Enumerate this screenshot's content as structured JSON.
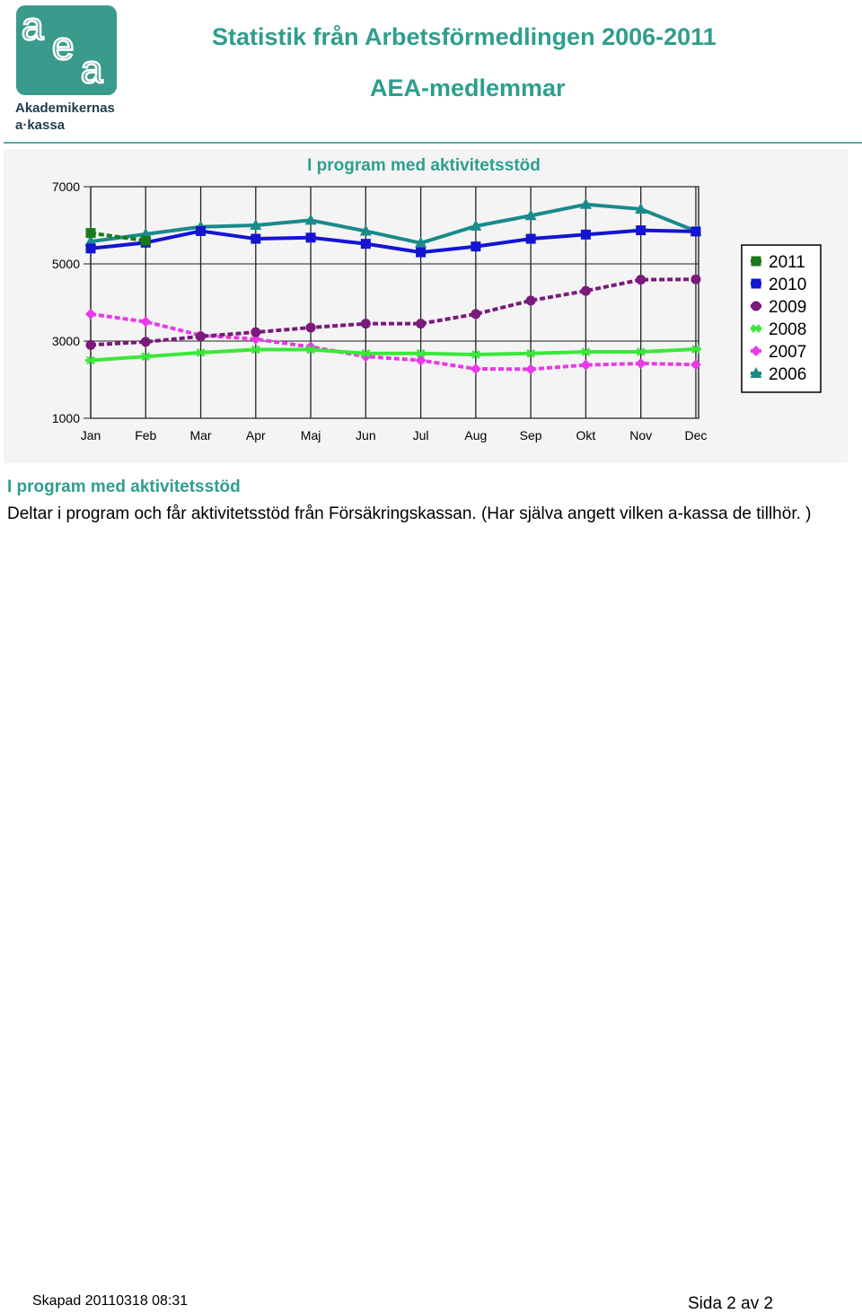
{
  "brand": {
    "letters": "aea",
    "name_line1": "Akademikernas",
    "name_line2": "a·kassa",
    "color": "#3a9a8c"
  },
  "header": {
    "title": "Statistik från Arbetsförmedlingen 2006-2011",
    "subtitle": "AEA-medlemmar",
    "accent_color": "#2e9e8e"
  },
  "section": {
    "title": "I program med aktivitetsstöd",
    "description": "Deltar i program och får aktivitetsstöd från Försäkringskassan. (Har själva angett vilken a-kassa de tillhör. )"
  },
  "footer": {
    "created": "Skapad 20110318 08:31",
    "page": "Sida 2 av 2"
  },
  "chart_data": {
    "type": "line",
    "title": "I program med aktivitetsstöd",
    "xlabel": "",
    "ylabel": "",
    "categories": [
      "Jan",
      "Feb",
      "Mar",
      "Apr",
      "Maj",
      "Jun",
      "Jul",
      "Aug",
      "Sep",
      "Okt",
      "Nov",
      "Dec"
    ],
    "ylim": [
      1000,
      7000
    ],
    "yticks": [
      1000,
      3000,
      5000,
      7000
    ],
    "grid": true,
    "legend": "right",
    "series": [
      {
        "name": "2011",
        "color": "#1a7a1a",
        "dashed": true,
        "marker": "square",
        "values": [
          5800,
          5600,
          null,
          null,
          null,
          null,
          null,
          null,
          null,
          null,
          null,
          null
        ]
      },
      {
        "name": "2010",
        "color": "#1414d2",
        "dashed": false,
        "marker": "square",
        "values": [
          5400,
          5550,
          5850,
          5650,
          5680,
          5520,
          5300,
          5450,
          5650,
          5760,
          5870,
          5840
        ]
      },
      {
        "name": "2009",
        "color": "#7a1a7a",
        "dashed": true,
        "marker": "hexagon",
        "values": [
          2900,
          2980,
          3120,
          3230,
          3350,
          3450,
          3450,
          3700,
          4050,
          4300,
          4590,
          4600
        ]
      },
      {
        "name": "2008",
        "color": "#3ae83a",
        "dashed": false,
        "marker": "star",
        "values": [
          2500,
          2600,
          2700,
          2780,
          2780,
          2680,
          2680,
          2650,
          2680,
          2720,
          2720,
          2790
        ]
      },
      {
        "name": "2007",
        "color": "#e83ae8",
        "dashed": true,
        "marker": "diamond",
        "values": [
          3700,
          3500,
          3150,
          3050,
          2850,
          2600,
          2500,
          2280,
          2270,
          2380,
          2420,
          2390
        ]
      },
      {
        "name": "2006",
        "color": "#1a8a8a",
        "dashed": false,
        "marker": "triangle",
        "values": [
          5580,
          5770,
          5960,
          6000,
          6130,
          5850,
          5540,
          5980,
          6250,
          6540,
          6420,
          5850
        ]
      }
    ]
  }
}
